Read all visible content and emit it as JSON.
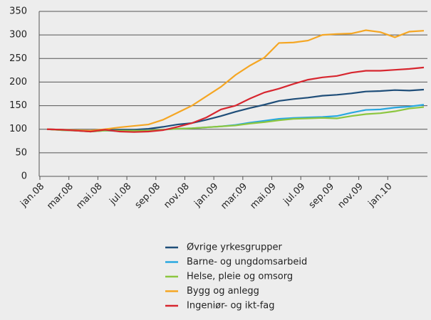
{
  "chart_data": {
    "type": "line",
    "categories": [
      "jan.08",
      null,
      "mar.08",
      null,
      "mai.08",
      null,
      "jul.08",
      null,
      "sep.08",
      null,
      "nov.08",
      null,
      "jan.09",
      null,
      "mar.09",
      null,
      "mai.09",
      null,
      "jul.09",
      null,
      "sep.09",
      null,
      "nov.09",
      null,
      "jan.10",
      null,
      null
    ],
    "series": [
      {
        "name": "Øvrige yrkesgrupper",
        "color": "#1f4e79",
        "values": [
          100,
          99,
          97,
          96,
          98,
          99,
          99,
          101,
          105,
          110,
          113,
          120,
          128,
          137,
          145,
          152,
          160,
          164,
          167,
          171,
          173,
          176,
          180,
          181,
          183,
          182,
          184
        ]
      },
      {
        "name": "Barne- og ungdomsarbeid",
        "color": "#29a8e0",
        "values": [
          100,
          98,
          97,
          95,
          97,
          96,
          96,
          97,
          99,
          101,
          102,
          104,
          106,
          109,
          114,
          118,
          122,
          124,
          125,
          126,
          128,
          135,
          141,
          142,
          146,
          148,
          152
        ]
      },
      {
        "name": "Helse, pleie og omsorg",
        "color": "#8cc63f",
        "values": [
          100,
          98,
          97,
          95,
          97,
          97,
          97,
          97,
          99,
          101,
          102,
          104,
          106,
          108,
          112,
          115,
          119,
          122,
          123,
          124,
          123,
          128,
          132,
          134,
          138,
          144,
          147
        ]
      },
      {
        "name": "Bygg og anlegg",
        "color": "#f5a623",
        "values": [
          100,
          99,
          98,
          97,
          100,
          104,
          107,
          110,
          120,
          135,
          150,
          170,
          190,
          215,
          235,
          252,
          283,
          284,
          288,
          300,
          302,
          303,
          310,
          306,
          295,
          307,
          309
        ]
      },
      {
        "name": "Ingeniør- og ikt-fag",
        "color": "#d7262f",
        "values": [
          100,
          99,
          97,
          95,
          99,
          95,
          94,
          95,
          98,
          105,
          113,
          125,
          142,
          150,
          165,
          178,
          186,
          196,
          205,
          210,
          213,
          220,
          224,
          224,
          226,
          228,
          231
        ]
      }
    ],
    "ylim": [
      0,
      350
    ],
    "yticks": [
      0,
      50,
      100,
      150,
      200,
      250,
      300,
      350
    ],
    "grid": true
  }
}
